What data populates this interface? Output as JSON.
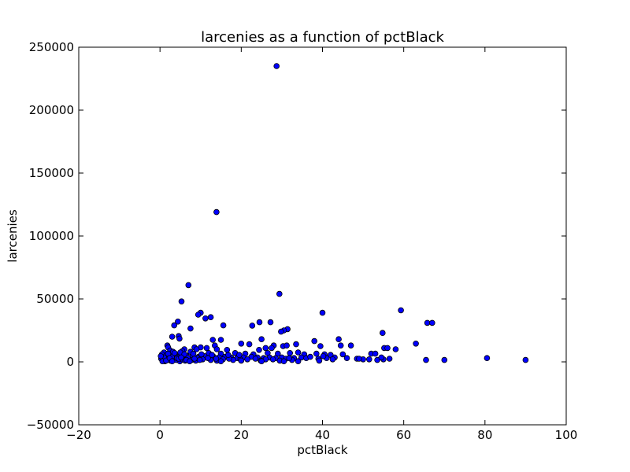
{
  "chart_data": {
    "type": "scatter",
    "title": "larcenies as a function of pctBlack",
    "xlabel": "pctBlack",
    "ylabel": "larcenies",
    "xlim": [
      -20,
      100
    ],
    "ylim": [
      -50000,
      250000
    ],
    "xticks": [
      -20,
      0,
      20,
      40,
      60,
      80,
      100
    ],
    "yticks": [
      -50000,
      0,
      50000,
      100000,
      150000,
      200000,
      250000
    ],
    "xtick_labels": [
      "−20",
      "0",
      "20",
      "40",
      "60",
      "80",
      "100"
    ],
    "ytick_labels": [
      "−50000",
      "0",
      "50000",
      "100000",
      "150000",
      "200000",
      "250000"
    ],
    "marker_color": "#0000ff",
    "grid": false,
    "points": [
      [
        28.7,
        235000
      ],
      [
        13.9,
        119000
      ],
      [
        7.0,
        61000
      ],
      [
        29.4,
        54000
      ],
      [
        5.3,
        48000
      ],
      [
        59.3,
        41000
      ],
      [
        40.0,
        39000
      ],
      [
        10.0,
        39000
      ],
      [
        9.4,
        37500
      ],
      [
        12.5,
        35500
      ],
      [
        11.2,
        34500
      ],
      [
        4.4,
        32000
      ],
      [
        24.5,
        31500
      ],
      [
        27.2,
        31500
      ],
      [
        65.8,
        31000
      ],
      [
        67.0,
        31000
      ],
      [
        3.5,
        29000
      ],
      [
        15.6,
        29000
      ],
      [
        22.7,
        28800
      ],
      [
        7.5,
        26500
      ],
      [
        31.4,
        26000
      ],
      [
        30.5,
        25000
      ],
      [
        29.8,
        24000
      ],
      [
        54.8,
        23000
      ],
      [
        3.0,
        20000
      ],
      [
        4.6,
        20500
      ],
      [
        4.8,
        18500
      ],
      [
        25.0,
        18000
      ],
      [
        44.0,
        18000
      ],
      [
        13.0,
        17500
      ],
      [
        15.0,
        17500
      ],
      [
        38.0,
        16500
      ],
      [
        63.0,
        14500
      ],
      [
        20.0,
        14500
      ],
      [
        22.0,
        14000
      ],
      [
        33.5,
        14000
      ],
      [
        44.5,
        13000
      ],
      [
        47.0,
        13000
      ],
      [
        13.5,
        13000
      ],
      [
        1.8,
        13000
      ],
      [
        28.0,
        13000
      ],
      [
        30.3,
        12500
      ],
      [
        31.2,
        13000
      ],
      [
        39.5,
        12500
      ],
      [
        2.0,
        11500
      ],
      [
        8.5,
        11500
      ],
      [
        10.0,
        11500
      ],
      [
        11.5,
        11000
      ],
      [
        26.0,
        11000
      ],
      [
        27.5,
        11000
      ],
      [
        55.2,
        11000
      ],
      [
        56.0,
        11000
      ],
      [
        58.0,
        10000
      ],
      [
        14.0,
        10000
      ],
      [
        16.5,
        9500
      ],
      [
        24.4,
        9500
      ],
      [
        6.0,
        10000
      ],
      [
        9.0,
        10000
      ],
      [
        2.5,
        9000
      ],
      [
        1.0,
        7500
      ],
      [
        3.2,
        8000
      ],
      [
        5.5,
        8500
      ],
      [
        7.5,
        8000
      ],
      [
        12.0,
        7000
      ],
      [
        15.0,
        6500
      ],
      [
        18.5,
        7000
      ],
      [
        21.0,
        6500
      ],
      [
        23.0,
        6000
      ],
      [
        26.5,
        7000
      ],
      [
        29.0,
        6500
      ],
      [
        32.0,
        7000
      ],
      [
        34.0,
        7500
      ],
      [
        35.5,
        6000
      ],
      [
        38.5,
        6500
      ],
      [
        40.5,
        6000
      ],
      [
        42.0,
        5500
      ],
      [
        45.0,
        6000
      ],
      [
        52.0,
        6500
      ],
      [
        53.0,
        6500
      ],
      [
        0.5,
        6000
      ],
      [
        1.5,
        5000
      ],
      [
        2.2,
        4500
      ],
      [
        3.8,
        5000
      ],
      [
        4.5,
        4000
      ],
      [
        5.8,
        4500
      ],
      [
        6.5,
        5000
      ],
      [
        8.0,
        4500
      ],
      [
        9.5,
        4000
      ],
      [
        11.0,
        4500
      ],
      [
        13.2,
        4000
      ],
      [
        14.5,
        3500
      ],
      [
        16.0,
        4000
      ],
      [
        17.5,
        3500
      ],
      [
        19.0,
        3000
      ],
      [
        20.5,
        3500
      ],
      [
        22.5,
        4000
      ],
      [
        24.0,
        3500
      ],
      [
        25.5,
        3000
      ],
      [
        27.0,
        3500
      ],
      [
        28.5,
        3000
      ],
      [
        30.0,
        3500
      ],
      [
        31.0,
        2500
      ],
      [
        33.0,
        3000
      ],
      [
        34.8,
        3500
      ],
      [
        36.0,
        3000
      ],
      [
        39.0,
        2500
      ],
      [
        41.0,
        3000
      ],
      [
        43.0,
        3500
      ],
      [
        46.0,
        3000
      ],
      [
        48.5,
        2500
      ],
      [
        50.0,
        2000
      ],
      [
        51.5,
        2000
      ],
      [
        53.5,
        1500
      ],
      [
        55.0,
        2000
      ],
      [
        56.5,
        2500
      ],
      [
        65.5,
        1500
      ],
      [
        70.0,
        1500
      ],
      [
        80.5,
        3000
      ],
      [
        90.0,
        1500
      ],
      [
        0.3,
        2500
      ],
      [
        0.8,
        1500
      ],
      [
        1.2,
        500
      ],
      [
        1.8,
        2000
      ],
      [
        2.6,
        1000
      ],
      [
        3.3,
        2500
      ],
      [
        4.0,
        1500
      ],
      [
        4.9,
        500
      ],
      [
        5.5,
        2000
      ],
      [
        6.2,
        1000
      ],
      [
        7.0,
        2500
      ],
      [
        7.8,
        1500
      ],
      [
        8.8,
        1000
      ],
      [
        10.5,
        2000
      ],
      [
        12.5,
        1500
      ],
      [
        14.0,
        1000
      ],
      [
        15.5,
        2000
      ],
      [
        18.0,
        1500
      ],
      [
        21.5,
        2000
      ],
      [
        24.8,
        1000
      ],
      [
        27.8,
        2000
      ],
      [
        29.5,
        1000
      ],
      [
        32.5,
        1500
      ],
      [
        34.0,
        500
      ],
      [
        39.2,
        1000
      ],
      [
        49.0,
        2500
      ],
      [
        1.0,
        3500
      ],
      [
        2.9,
        4000
      ],
      [
        4.2,
        3000
      ],
      [
        6.8,
        3500
      ],
      [
        9.2,
        3000
      ],
      [
        11.8,
        3000
      ],
      [
        17.0,
        2500
      ],
      [
        19.8,
        2000
      ],
      [
        23.5,
        2500
      ],
      [
        26.0,
        2000
      ],
      [
        31.8,
        3000
      ],
      [
        37.0,
        4000
      ],
      [
        40.2,
        4500
      ],
      [
        42.5,
        2000
      ],
      [
        54.5,
        3500
      ],
      [
        0.2,
        4500
      ],
      [
        2.0,
        6500
      ],
      [
        3.6,
        7000
      ],
      [
        5.0,
        7500
      ],
      [
        6.0,
        6000
      ],
      [
        8.2,
        6500
      ],
      [
        10.2,
        6000
      ],
      [
        12.8,
        5500
      ],
      [
        16.8,
        5500
      ],
      [
        19.5,
        5500
      ],
      [
        0.6,
        500
      ],
      [
        1.5,
        1000
      ],
      [
        2.4,
        3000
      ],
      [
        3.0,
        500
      ],
      [
        4.6,
        2500
      ],
      [
        5.2,
        3500
      ],
      [
        6.5,
        1500
      ],
      [
        7.3,
        500
      ],
      [
        8.5,
        2500
      ],
      [
        9.8,
        1500
      ],
      [
        13.8,
        2500
      ],
      [
        15.0,
        500
      ],
      [
        20.0,
        1000
      ],
      [
        25.0,
        500
      ],
      [
        30.5,
        500
      ]
    ]
  }
}
